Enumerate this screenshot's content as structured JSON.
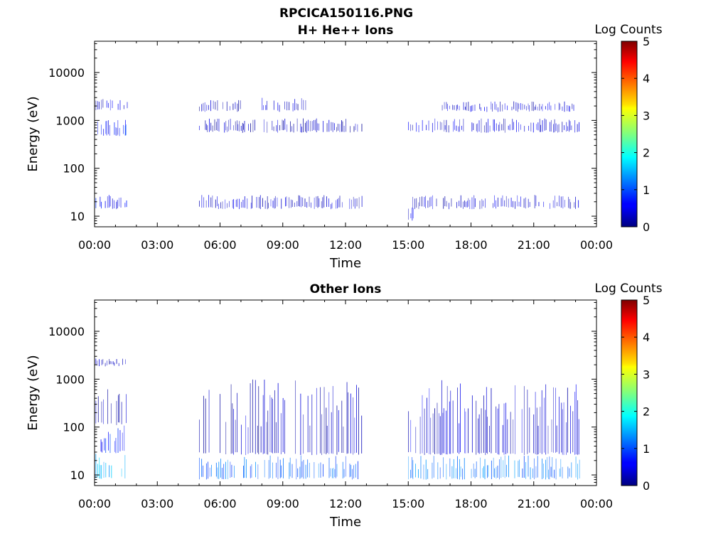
{
  "figure_title": "RPCICA150116.PNG",
  "colorbar": {
    "label": "Log Counts",
    "ticks": [
      0,
      1,
      2,
      3,
      4,
      5
    ],
    "colormap": "jet"
  },
  "chart_data": [
    {
      "type": "heatmap",
      "title": "H+ He++ Ions",
      "xlabel": "Time",
      "ylabel": "Energy (eV)",
      "xlim": [
        "00:00",
        "24:00"
      ],
      "ylim": [
        6,
        45000
      ],
      "yscale": "log",
      "x_ticks": [
        "00:00",
        "03:00",
        "06:00",
        "09:00",
        "12:00",
        "15:00",
        "18:00",
        "21:00",
        "00:00"
      ],
      "y_ticks": [
        "10",
        "100",
        "1000",
        "10000"
      ],
      "colorbar_range": [
        0,
        5
      ],
      "bands": [
        {
          "t_start": 0.05,
          "t_end": 1.55,
          "e_low": 14,
          "e_high": 28,
          "log_counts": 0.6
        },
        {
          "t_start": 0.05,
          "t_end": 1.55,
          "e_low": 450,
          "e_high": 1200,
          "log_counts": 0.6
        },
        {
          "t_start": 0.05,
          "t_end": 1.55,
          "e_low": 1600,
          "e_high": 2800,
          "log_counts": 0.4
        },
        {
          "t_start": 1.45,
          "t_end": 1.55,
          "e_low": 450,
          "e_high": 900,
          "log_counts": 1.1
        },
        {
          "t_start": 5.0,
          "t_end": 12.8,
          "e_low": 14,
          "e_high": 28,
          "log_counts": 0.4
        },
        {
          "t_start": 5.0,
          "t_end": 5.2,
          "e_low": 8,
          "e_high": 14,
          "log_counts": 0.5
        },
        {
          "t_start": 5.0,
          "t_end": 7.0,
          "e_low": 1500,
          "e_high": 2700,
          "log_counts": 0.3
        },
        {
          "t_start": 8.0,
          "t_end": 10.2,
          "e_low": 1500,
          "e_high": 3000,
          "log_counts": 0.4
        },
        {
          "t_start": 5.0,
          "t_end": 12.8,
          "e_low": 550,
          "e_high": 1100,
          "log_counts": 0.3
        },
        {
          "t_start": 15.0,
          "t_end": 23.2,
          "e_low": 14,
          "e_high": 28,
          "log_counts": 0.4
        },
        {
          "t_start": 15.0,
          "t_end": 15.3,
          "e_low": 8,
          "e_high": 16,
          "log_counts": 0.5
        },
        {
          "t_start": 15.0,
          "t_end": 23.2,
          "e_low": 550,
          "e_high": 1100,
          "log_counts": 0.4
        },
        {
          "t_start": 16.5,
          "t_end": 23.0,
          "e_low": 1500,
          "e_high": 2500,
          "log_counts": 0.4
        }
      ]
    },
    {
      "type": "heatmap",
      "title": "Other Ions",
      "xlabel": "Time",
      "ylabel": "Energy (eV)",
      "xlim": [
        "00:00",
        "24:00"
      ],
      "ylim": [
        6,
        45000
      ],
      "yscale": "log",
      "x_ticks": [
        "00:00",
        "03:00",
        "06:00",
        "09:00",
        "12:00",
        "15:00",
        "18:00",
        "21:00",
        "00:00"
      ],
      "y_ticks": [
        "10",
        "100",
        "1000",
        "10000"
      ],
      "colorbar_range": [
        0,
        5
      ],
      "bands": [
        {
          "t_start": 0.05,
          "t_end": 1.55,
          "e_low": 8,
          "e_high": 28,
          "log_counts": 1.5
        },
        {
          "t_start": 0.05,
          "t_end": 1.55,
          "e_low": 28,
          "e_high": 110,
          "log_counts": 0.8
        },
        {
          "t_start": 0.05,
          "t_end": 1.55,
          "e_low": 110,
          "e_high": 1200,
          "log_counts": 0.3
        },
        {
          "t_start": 0.05,
          "t_end": 1.55,
          "e_low": 1800,
          "e_high": 2800,
          "log_counts": 0.3
        },
        {
          "t_start": 5.0,
          "t_end": 12.8,
          "e_low": 8,
          "e_high": 26,
          "log_counts": 1.1
        },
        {
          "t_start": 5.0,
          "t_end": 12.8,
          "e_low": 26,
          "e_high": 1000,
          "log_counts": 0.3
        },
        {
          "t_start": 15.0,
          "t_end": 23.2,
          "e_low": 8,
          "e_high": 26,
          "log_counts": 1.2
        },
        {
          "t_start": 15.0,
          "t_end": 23.2,
          "e_low": 26,
          "e_high": 1000,
          "log_counts": 0.4
        }
      ]
    }
  ]
}
